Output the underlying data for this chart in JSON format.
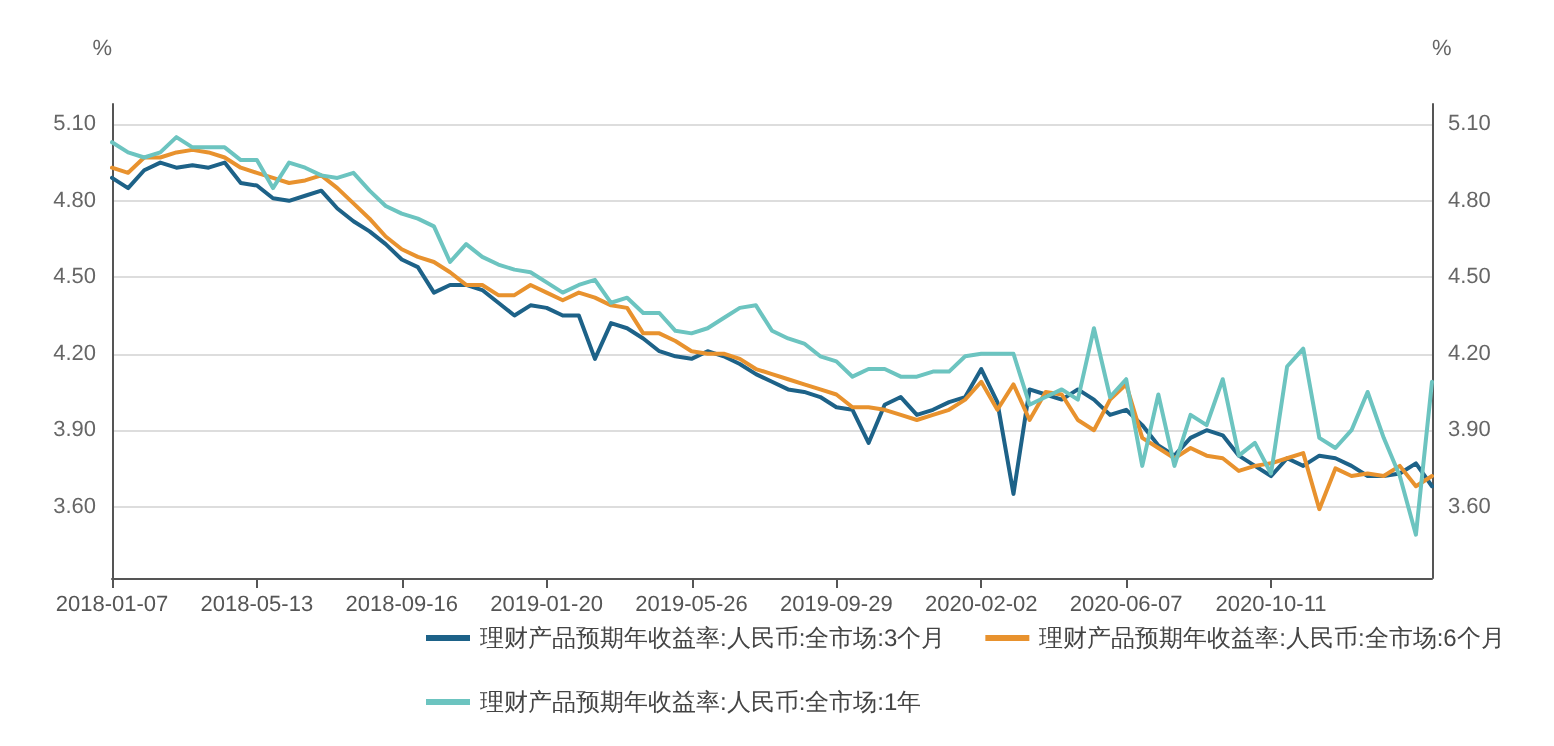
{
  "chart_data": {
    "type": "line",
    "categories": [
      "2018-01-07",
      null,
      null,
      null,
      null,
      null,
      null,
      null,
      null,
      "2018-05-13",
      null,
      null,
      null,
      null,
      null,
      null,
      null,
      null,
      "2018-09-16",
      null,
      null,
      null,
      null,
      null,
      null,
      null,
      null,
      "2019-01-20",
      null,
      null,
      null,
      null,
      null,
      null,
      null,
      null,
      "2019-05-26",
      null,
      null,
      null,
      null,
      null,
      null,
      null,
      null,
      "2019-09-29",
      null,
      null,
      null,
      null,
      null,
      null,
      null,
      null,
      "2020-02-02",
      null,
      null,
      null,
      null,
      null,
      null,
      null,
      null,
      "2020-06-07",
      null,
      null,
      null,
      null,
      null,
      null,
      null,
      null,
      "2020-10-11",
      null,
      null,
      null,
      null,
      null,
      null,
      null,
      null,
      null,
      null
    ],
    "series": [
      {
        "name": "理财产品预期年收益率:人民币:全市场:3个月",
        "color": "#1d6288",
        "values": [
          4.89,
          4.85,
          4.92,
          4.95,
          4.93,
          4.94,
          4.93,
          4.95,
          4.87,
          4.86,
          4.81,
          4.8,
          4.82,
          4.84,
          4.77,
          4.72,
          4.68,
          4.63,
          4.57,
          4.54,
          4.44,
          4.47,
          4.47,
          4.45,
          4.4,
          4.35,
          4.39,
          4.38,
          4.35,
          4.35,
          4.18,
          4.32,
          4.3,
          4.26,
          4.21,
          4.19,
          4.18,
          4.21,
          4.19,
          4.16,
          4.12,
          4.09,
          4.06,
          4.05,
          4.03,
          3.99,
          3.98,
          3.85,
          4.0,
          4.03,
          3.96,
          3.98,
          4.01,
          4.03,
          4.14,
          4.01,
          3.65,
          4.06,
          4.04,
          4.02,
          4.06,
          4.02,
          3.96,
          3.98,
          3.92,
          3.84,
          3.8,
          3.87,
          3.9,
          3.88,
          3.8,
          3.76,
          3.72,
          3.79,
          3.76,
          3.8,
          3.79,
          3.76,
          3.72,
          3.72,
          3.73,
          3.77,
          3.68
        ]
      },
      {
        "name": "理财产品预期年收益率:人民币:全市场:6个月",
        "color": "#e8922e",
        "values": [
          4.93,
          4.91,
          4.97,
          4.97,
          4.99,
          5.0,
          4.99,
          4.97,
          4.93,
          4.91,
          4.89,
          4.87,
          4.88,
          4.9,
          4.85,
          4.79,
          4.73,
          4.66,
          4.61,
          4.58,
          4.56,
          4.52,
          4.47,
          4.47,
          4.43,
          4.43,
          4.47,
          4.44,
          4.41,
          4.44,
          4.42,
          4.39,
          4.38,
          4.28,
          4.28,
          4.25,
          4.21,
          4.2,
          4.2,
          4.18,
          4.14,
          4.12,
          4.1,
          4.08,
          4.06,
          4.04,
          3.99,
          3.99,
          3.98,
          3.96,
          3.94,
          3.96,
          3.98,
          4.02,
          4.09,
          3.98,
          4.08,
          3.94,
          4.05,
          4.04,
          3.94,
          3.9,
          4.02,
          4.08,
          3.87,
          3.83,
          3.79,
          3.83,
          3.8,
          3.79,
          3.74,
          3.76,
          3.77,
          3.79,
          3.81,
          3.59,
          3.75,
          3.72,
          3.73,
          3.72,
          3.76,
          3.68,
          3.72
        ]
      },
      {
        "name": "理财产品预期年收益率:人民币:全市场:1年",
        "color": "#6cc4c0",
        "values": [
          5.03,
          4.99,
          4.97,
          4.99,
          5.05,
          5.01,
          5.01,
          5.01,
          4.96,
          4.96,
          4.85,
          4.95,
          4.93,
          4.9,
          4.89,
          4.91,
          4.84,
          4.78,
          4.75,
          4.73,
          4.7,
          4.56,
          4.63,
          4.58,
          4.55,
          4.53,
          4.52,
          4.48,
          4.44,
          4.47,
          4.49,
          4.4,
          4.42,
          4.36,
          4.36,
          4.29,
          4.28,
          4.3,
          4.34,
          4.38,
          4.39,
          4.29,
          4.26,
          4.24,
          4.19,
          4.17,
          4.11,
          4.14,
          4.14,
          4.11,
          4.11,
          4.13,
          4.13,
          4.19,
          4.2,
          4.2,
          4.2,
          4.0,
          4.03,
          4.06,
          4.02,
          4.3,
          4.03,
          4.1,
          3.76,
          4.04,
          3.76,
          3.96,
          3.92,
          4.1,
          3.8,
          3.85,
          3.73,
          4.15,
          4.22,
          3.87,
          3.83,
          3.9,
          4.05,
          3.87,
          3.72,
          3.49,
          4.09
        ]
      }
    ],
    "ylabel": "%",
    "y2label": "%",
    "ylim": [
      3.32,
      5.18
    ],
    "yticks": [
      {
        "value": 3.6,
        "label": "3.60"
      },
      {
        "value": 3.9,
        "label": "3.90"
      },
      {
        "value": 4.2,
        "label": "4.20"
      },
      {
        "value": 4.5,
        "label": "4.50"
      },
      {
        "value": 4.8,
        "label": "4.80"
      },
      {
        "value": 5.1,
        "label": "5.10"
      }
    ],
    "y2lim": [
      3.32,
      5.18
    ],
    "y2ticks": [
      {
        "value": 3.6,
        "label": "3.60"
      },
      {
        "value": 3.9,
        "label": "3.90"
      },
      {
        "value": 4.2,
        "label": "4.20"
      },
      {
        "value": 4.5,
        "label": "4.50"
      },
      {
        "value": 4.8,
        "label": "4.80"
      },
      {
        "value": 5.1,
        "label": "5.10"
      }
    ],
    "grid": "y",
    "legend": "bottom",
    "marker": "none",
    "line_style": "solid"
  }
}
